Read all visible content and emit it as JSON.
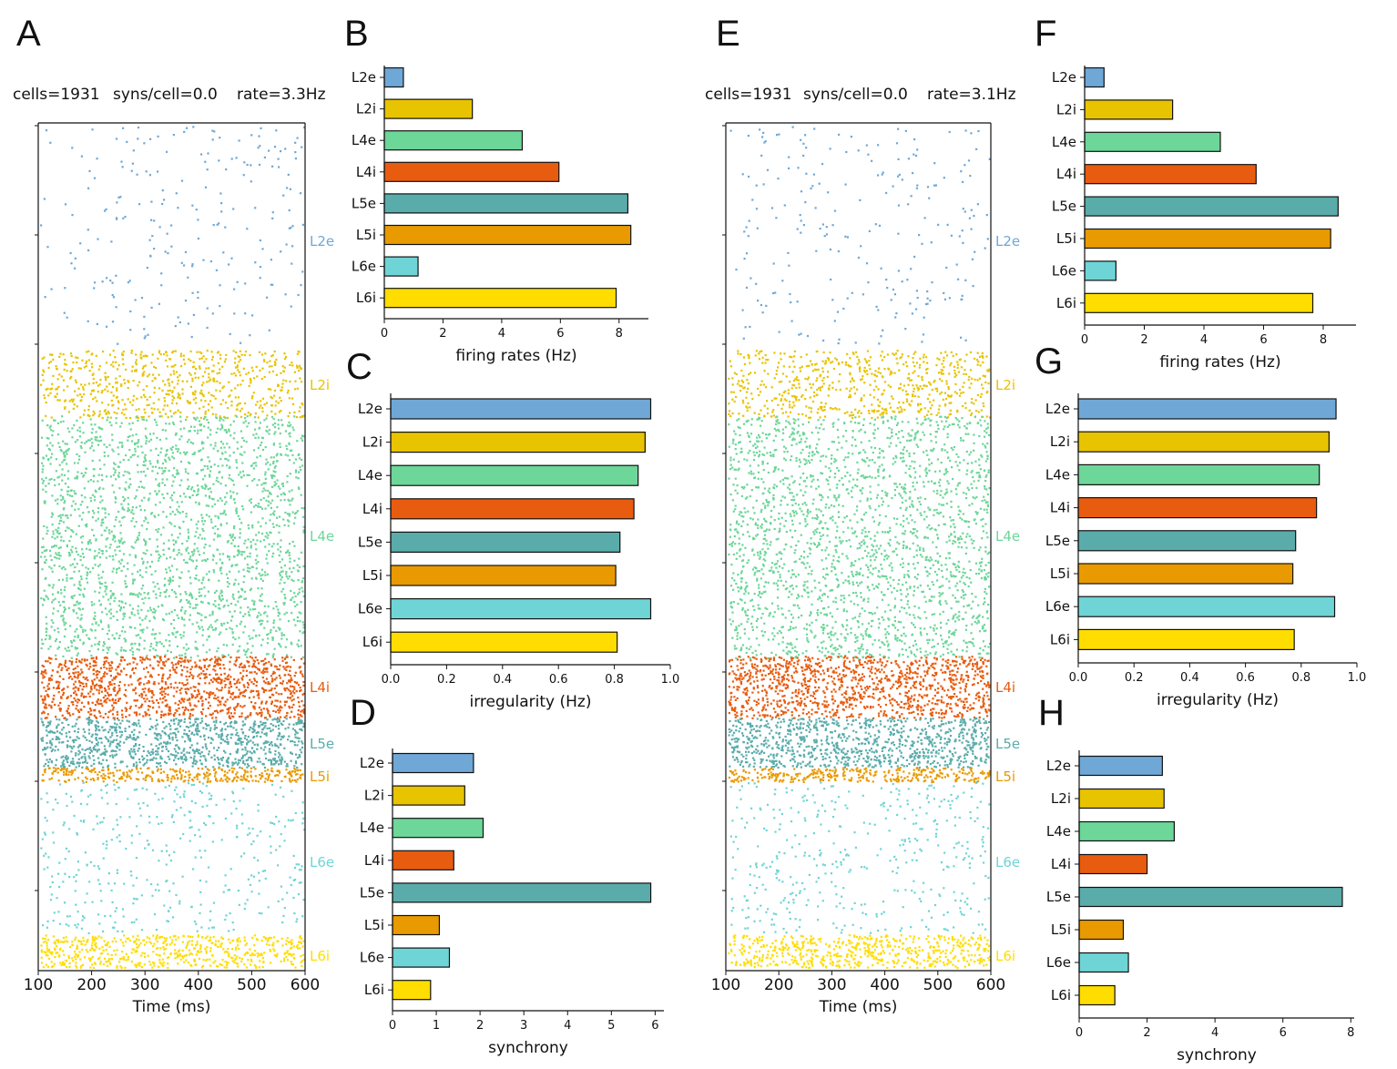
{
  "colors": {
    "L2e": "#6fa8d6",
    "L2i": "#e8c300",
    "L4e": "#6dd699",
    "L4i": "#e85c10",
    "L5e": "#5aacab",
    "L5i": "#e89a00",
    "L6e": "#6fd4d6",
    "L6i": "#ffdd00"
  },
  "panels": {
    "A": "A",
    "B": "B",
    "C": "C",
    "D": "D",
    "E": "E",
    "F": "F",
    "G": "G",
    "H": "H"
  },
  "chart_data": [
    {
      "id": "A",
      "type": "scatter",
      "header": {
        "cells": "cells=1931",
        "syns": "syns/cell=0.0",
        "rate": "rate=3.3Hz"
      },
      "xlabel": "Time (ms)",
      "xlim": [
        100,
        600
      ],
      "xticks": [
        "100",
        "200",
        "300",
        "400",
        "500",
        "600"
      ],
      "populations": [
        "L2e",
        "L2i",
        "L4e",
        "L4i",
        "L5e",
        "L5i",
        "L6e",
        "L6i"
      ],
      "pop_labels": [
        "L2e",
        "L2i",
        "L4e",
        "L4i",
        "L5e",
        "L5i",
        "L6e",
        "L6i"
      ]
    },
    {
      "id": "B",
      "type": "bar",
      "orientation": "horizontal",
      "categories": [
        "L2e",
        "L2i",
        "L4e",
        "L4i",
        "L5e",
        "L5i",
        "L6e",
        "L6i"
      ],
      "values": [
        0.65,
        3.0,
        4.7,
        5.95,
        8.3,
        8.4,
        1.15,
        7.9
      ],
      "xlabel": "firing rates (Hz)",
      "xlim": [
        0,
        9
      ],
      "xticks": [
        "0",
        "2",
        "4",
        "6",
        "8"
      ]
    },
    {
      "id": "C",
      "type": "bar",
      "orientation": "horizontal",
      "categories": [
        "L2e",
        "L2i",
        "L4e",
        "L4i",
        "L5e",
        "L5i",
        "L6e",
        "L6i"
      ],
      "values": [
        0.93,
        0.91,
        0.885,
        0.87,
        0.82,
        0.805,
        0.93,
        0.81
      ],
      "xlabel": "irregularity (Hz)",
      "xlim": [
        0,
        1.0
      ],
      "xticks": [
        "0.0",
        "0.2",
        "0.4",
        "0.6",
        "0.8",
        "1.0"
      ]
    },
    {
      "id": "D",
      "type": "bar",
      "orientation": "horizontal",
      "categories": [
        "L2e",
        "L2i",
        "L4e",
        "L4i",
        "L5e",
        "L5i",
        "L6e",
        "L6i"
      ],
      "values": [
        1.85,
        1.65,
        2.07,
        1.4,
        5.9,
        1.07,
        1.3,
        0.87
      ],
      "xlabel": "synchrony",
      "xlim": [
        0,
        6.2
      ],
      "xticks": [
        "0",
        "1",
        "2",
        "3",
        "4",
        "5",
        "6"
      ]
    },
    {
      "id": "E",
      "type": "scatter",
      "header": {
        "cells": "cells=1931",
        "syns": "syns/cell=0.0",
        "rate": "rate=3.1Hz"
      },
      "xlabel": "Time (ms)",
      "xlim": [
        100,
        600
      ],
      "xticks": [
        "100",
        "200",
        "300",
        "400",
        "500",
        "600"
      ],
      "populations": [
        "L2e",
        "L2i",
        "L4e",
        "L4i",
        "L5e",
        "L5i",
        "L6e",
        "L6i"
      ],
      "pop_labels": [
        "L2e",
        "L2i",
        "L4e",
        "L4i",
        "L5e",
        "L5i",
        "L6e",
        "L6i"
      ]
    },
    {
      "id": "F",
      "type": "bar",
      "orientation": "horizontal",
      "categories": [
        "L2e",
        "L2i",
        "L4e",
        "L4i",
        "L5e",
        "L5i",
        "L6e",
        "L6i"
      ],
      "values": [
        0.65,
        2.95,
        4.55,
        5.75,
        8.5,
        8.25,
        1.05,
        7.65
      ],
      "xlabel": "firing rates (Hz)",
      "xlim": [
        0,
        9.1
      ],
      "xticks": [
        "0",
        "2",
        "4",
        "6",
        "8"
      ]
    },
    {
      "id": "G",
      "type": "bar",
      "orientation": "horizontal",
      "categories": [
        "L2e",
        "L2i",
        "L4e",
        "L4i",
        "L5e",
        "L5i",
        "L6e",
        "L6i"
      ],
      "values": [
        0.925,
        0.9,
        0.865,
        0.855,
        0.78,
        0.77,
        0.92,
        0.775
      ],
      "xlabel": "irregularity (Hz)",
      "xlim": [
        0,
        1.0
      ],
      "xticks": [
        "0.0",
        "0.2",
        "0.4",
        "0.6",
        "0.8",
        "1.0"
      ]
    },
    {
      "id": "H",
      "type": "bar",
      "orientation": "horizontal",
      "categories": [
        "L2e",
        "L2i",
        "L4e",
        "L4i",
        "L5e",
        "L5i",
        "L6e",
        "L6i"
      ],
      "values": [
        2.45,
        2.5,
        2.8,
        2.0,
        7.75,
        1.3,
        1.45,
        1.05
      ],
      "xlabel": "synchrony",
      "xlim": [
        0,
        8.1
      ],
      "xticks": [
        "0",
        "2",
        "4",
        "6",
        "8"
      ]
    }
  ]
}
